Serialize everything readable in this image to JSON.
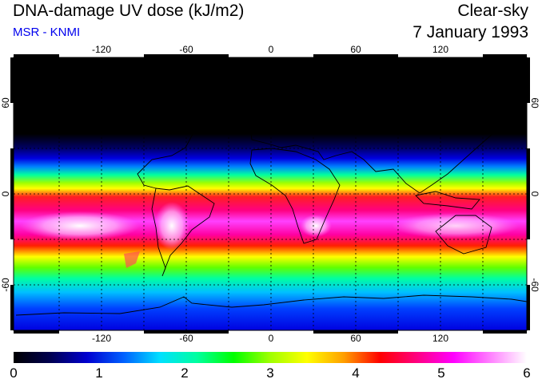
{
  "header": {
    "title": "DNA-damage UV dose (kJ/m2)",
    "source": "MSR - KNMI",
    "sky_condition": "Clear-sky",
    "date": "7 January 1993"
  },
  "colors": {
    "source_text": "#0000ee",
    "colormap": [
      "#000000",
      "#000050",
      "#0000d0",
      "#0060ff",
      "#00e0ff",
      "#00ffa0",
      "#00ff00",
      "#a0ff00",
      "#ffff00",
      "#ffa000",
      "#ff0000",
      "#ff0080",
      "#ff00ff",
      "#ff80ff",
      "#ffffff"
    ]
  },
  "map": {
    "projection": "equirectangular",
    "lon_range": [
      -180,
      180
    ],
    "lat_range": [
      -90,
      90
    ],
    "lon_ticks": [
      "-120",
      "-60",
      "0",
      "60",
      "120"
    ],
    "lat_ticks_left": [
      "60",
      "0",
      "-60"
    ],
    "lat_ticks_right": [
      "60",
      "0",
      "-60"
    ],
    "graticule": "dotted every 30 degrees"
  },
  "colorbar": {
    "min": 0,
    "max": 6,
    "labels": [
      "0",
      "1",
      "2",
      "3",
      "4",
      "5",
      "6"
    ]
  }
}
